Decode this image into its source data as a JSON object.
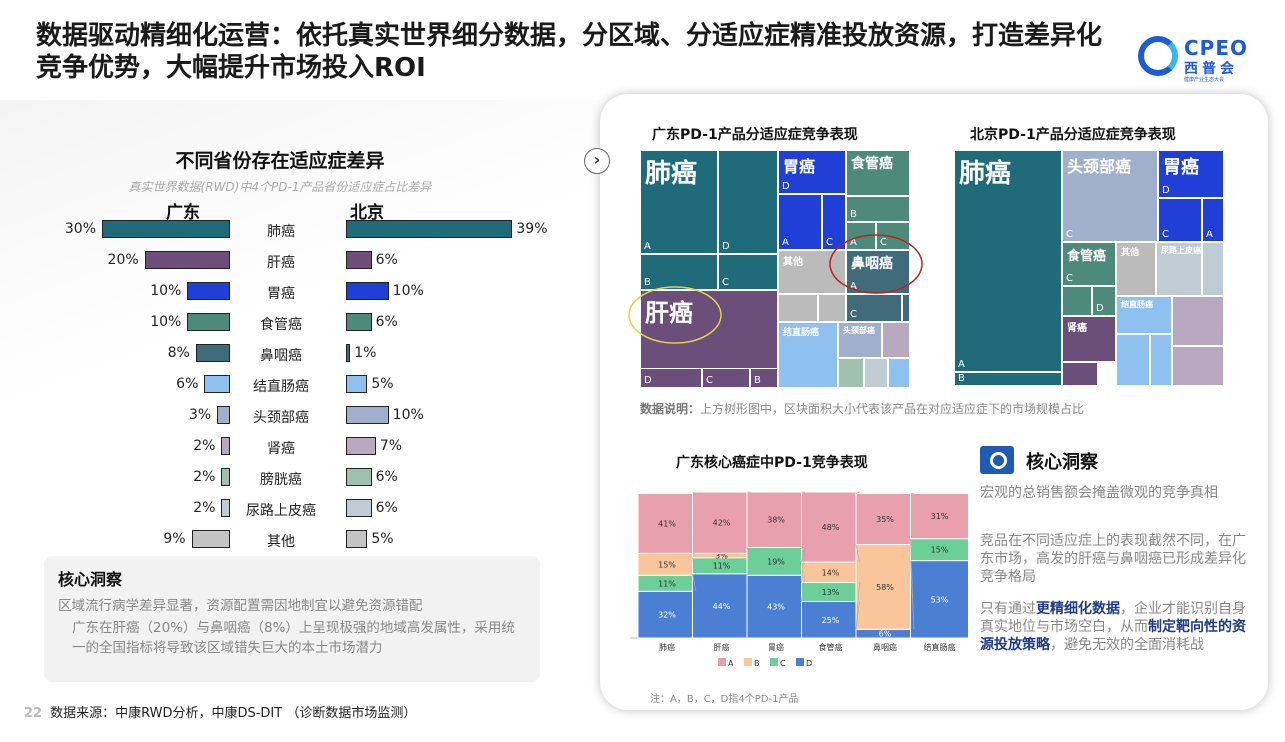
{
  "header": {
    "title": "数据驱动精细化运营：依托真实世界细分数据，分区域、分适应症精准投放资源，打造差异化竞争优势，大幅提升市场投入ROI"
  },
  "logo": {
    "en": "CPEO",
    "cn": "西普会",
    "sub": "健康产业生态大会"
  },
  "left": {
    "heading": "不同省份存在适应症差异",
    "subheading": "真实世界数据(RWD)中4个PD-1产品省份适应症占比差异",
    "col_left": "广东",
    "col_right": "北京",
    "rows": [
      {
        "name": "肺癌",
        "gd": "30%",
        "bj": "39%",
        "gdv": 30,
        "bjv": 39,
        "color": "#1f6b7a"
      },
      {
        "name": "肝癌",
        "gd": "20%",
        "bj": "6%",
        "gdv": 20,
        "bjv": 6,
        "color": "#6b4e7a"
      },
      {
        "name": "胃癌",
        "gd": "10%",
        "bj": "10%",
        "gdv": 10,
        "bjv": 10,
        "color": "#1f3fd6"
      },
      {
        "name": "食管癌",
        "gd": "10%",
        "bj": "6%",
        "gdv": 10,
        "bjv": 6,
        "color": "#4e8a7a"
      },
      {
        "name": "鼻咽癌",
        "gd": "8%",
        "bj": "1%",
        "gdv": 8,
        "bjv": 1,
        "color": "#3f6b7a"
      },
      {
        "name": "结直肠癌",
        "gd": "6%",
        "bj": "5%",
        "gdv": 6,
        "bjv": 5,
        "color": "#8ec0f0"
      },
      {
        "name": "头颈部癌",
        "gd": "3%",
        "bj": "10%",
        "gdv": 3,
        "bjv": 10,
        "color": "#a0b0cc"
      },
      {
        "name": "肾癌",
        "gd": "2%",
        "bj": "7%",
        "gdv": 2,
        "bjv": 7,
        "color": "#b8a8c0"
      },
      {
        "name": "膀胱癌",
        "gd": "2%",
        "bj": "6%",
        "gdv": 2,
        "bjv": 6,
        "color": "#a0c0b0"
      },
      {
        "name": "尿路上皮癌",
        "gd": "2%",
        "bj": "6%",
        "gdv": 2,
        "bjv": 6,
        "color": "#c0ccd4"
      },
      {
        "name": "其他",
        "gd": "9%",
        "bj": "5%",
        "gdv": 9,
        "bjv": 5,
        "color": "#c4c4c4"
      }
    ],
    "insight": {
      "title": "核心洞察",
      "p1": "区域流行病学差异显著，资源配置需因地制宜以避免资源错配",
      "p2": "广东在肝癌（20%）与鼻咽癌（8%）上呈现极强的地域高发属性，采用统一的全国指标将导致该区域错失巨大的本土市场潜力"
    }
  },
  "source": {
    "page": "22",
    "text": "数据来源：中康RWD分析，中康DS-DIT （诊断数据市场监测）"
  },
  "treemap": {
    "gd_title": "广东PD-1产品分适应症竞争表现",
    "bj_title": "北京PD-1产品分适应症竞争表现",
    "labels": {
      "lung": "肺癌",
      "liver": "肝癌",
      "stomach": "胃癌",
      "esoph": "食管癌",
      "naso": "鼻咽癌",
      "other": "其他",
      "crc": "结直肠癌",
      "hn": "头颈部癌",
      "kidney": "肾癌",
      "bladder": "膀胱癌",
      "uro": "尿路上皮癌"
    },
    "note_label": "数据说明：",
    "note": "上方树形图中，区块面积大小代表该产品在对应适应症下的市场规模占比"
  },
  "stacked": {
    "title": "广东核心癌症中PD-1竞争表现",
    "categories": [
      "肺癌",
      "肝癌",
      "胃癌",
      "食管癌",
      "鼻咽癌",
      "结直肠癌"
    ],
    "series": [
      {
        "name": "D",
        "color": "#4a7fd4",
        "values": [
          32,
          44,
          43,
          25,
          6,
          53
        ]
      },
      {
        "name": "C",
        "color": "#6ccf98",
        "values": [
          11,
          11,
          19,
          13,
          0,
          15
        ]
      },
      {
        "name": "B",
        "color": "#f9c59a",
        "values": [
          15,
          3,
          0,
          14,
          58,
          0
        ]
      },
      {
        "name": "A",
        "color": "#e8a0ac",
        "values": [
          41,
          42,
          38,
          48,
          35,
          31
        ]
      }
    ],
    "legend": [
      "A",
      "B",
      "C",
      "D"
    ],
    "note": "注：A，B，C，D指4个PD-1产品"
  },
  "insight_r": {
    "title": "核心洞察",
    "p1": "宏观的总销售额会掩盖微观的竞争真相",
    "p2": "竞品在不同适应症上的表现截然不同，在广东市场，高发的肝癌与鼻咽癌已形成差异化竞争格局",
    "p3a": "只有通过",
    "p3b": "更精细化数据",
    "p3c": "，企业才能识别自身真实地位与市场空白，从而",
    "p3d": "制定靶向性的资源投放策略",
    "p3e": "，避免无效的全面消耗战"
  }
}
